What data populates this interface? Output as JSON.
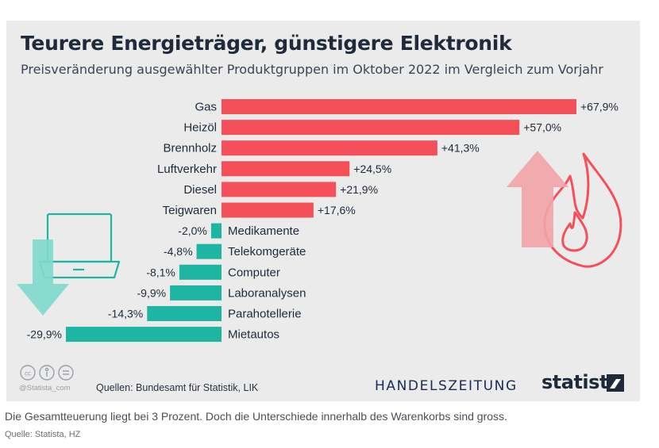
{
  "header": {
    "title": "Teurere Energieträger, günstigere Elektronik",
    "subtitle": "Preisveränderung ausgewählter Produktgruppen im Oktober 2022 im Vergleich zum Vorjahr"
  },
  "footer": {
    "cc_handle": "@Statista_com",
    "sources": "Quellen: Bundesamt für Statistik, LIK",
    "logo_handelszeitung": "HANDELSZEITUNG",
    "logo_statista": "statista"
  },
  "caption": "Die Gesamtteuerung liegt bei 3 Prozent. Doch die Unterschiede innerhalb des Warenkorbs sind gross.",
  "credit": "Quelle: Statista, HZ",
  "colors": {
    "positive": "#f5505a",
    "negative": "#1fb5a3",
    "background": "#ebebeb",
    "arrow_up": "#f2a3a7",
    "arrow_down": "#7fd9cc"
  },
  "icons": [
    "laptop-icon",
    "down-arrow-icon",
    "up-arrow-icon",
    "flame-icon",
    "cc-license-icons",
    "statista-logo-icon"
  ],
  "chart_data": {
    "type": "bar",
    "orientation": "horizontal",
    "categories": [
      "Gas",
      "Heizöl",
      "Brennholz",
      "Luftverkehr",
      "Diesel",
      "Teigwaren",
      "Medikamente",
      "Telekomgeräte",
      "Computer",
      "Laboranalysen",
      "Parahotellerie",
      "Mietautos"
    ],
    "values": [
      67.9,
      57.0,
      41.3,
      24.5,
      21.9,
      17.6,
      -2.0,
      -4.8,
      -8.1,
      -9.9,
      -14.3,
      -29.9
    ],
    "value_labels": [
      "+67,9%",
      "+57,0%",
      "+41,3%",
      "+24,5%",
      "+21,9%",
      "+17,6%",
      "-2,0%",
      "-4,8%",
      "-8,1%",
      "-9,9%",
      "-14,3%",
      "-29,9%"
    ],
    "xlim": [
      -29.9,
      67.9
    ],
    "grid": false,
    "legend": "none"
  }
}
